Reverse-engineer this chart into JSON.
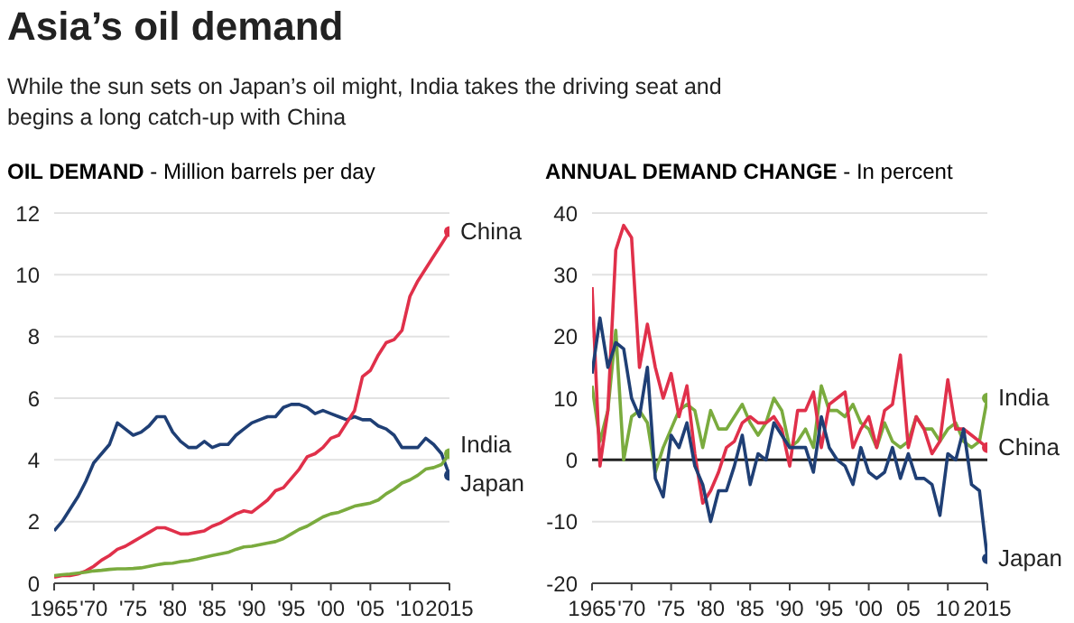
{
  "chart_data": [
    {
      "type": "line",
      "title": "Asia’s oil demand",
      "subtitle": "While the sun sets on Japan’s oil might, India takes the driving seat and begins a long catch-up with China",
      "ylabel": "OIL DEMAND - Million barrels per day",
      "x": [
        1965,
        1966,
        1967,
        1968,
        1969,
        1970,
        1971,
        1972,
        1973,
        1974,
        1975,
        1976,
        1977,
        1978,
        1979,
        1980,
        1981,
        1982,
        1983,
        1984,
        1985,
        1986,
        1987,
        1988,
        1989,
        1990,
        1991,
        1992,
        1993,
        1994,
        1995,
        1996,
        1997,
        1998,
        1999,
        2000,
        2001,
        2002,
        2003,
        2004,
        2005,
        2006,
        2007,
        2008,
        2009,
        2010,
        2011,
        2012,
        2013,
        2014,
        2015
      ],
      "series": [
        {
          "name": "Japan",
          "color": "#1f3f75",
          "values": [
            1.7,
            2.0,
            2.4,
            2.8,
            3.3,
            3.9,
            4.2,
            4.5,
            5.2,
            5.0,
            4.8,
            4.9,
            5.1,
            5.4,
            5.4,
            4.9,
            4.6,
            4.4,
            4.4,
            4.6,
            4.4,
            4.5,
            4.5,
            4.8,
            5.0,
            5.2,
            5.3,
            5.4,
            5.4,
            5.7,
            5.8,
            5.8,
            5.7,
            5.5,
            5.6,
            5.5,
            5.4,
            5.3,
            5.4,
            5.3,
            5.3,
            5.1,
            5.0,
            4.8,
            4.4,
            4.4,
            4.4,
            4.7,
            4.5,
            4.2,
            3.5
          ]
        },
        {
          "name": "China",
          "color": "#e0304a",
          "values": [
            0.2,
            0.25,
            0.25,
            0.3,
            0.4,
            0.55,
            0.75,
            0.9,
            1.1,
            1.2,
            1.35,
            1.5,
            1.65,
            1.8,
            1.8,
            1.7,
            1.6,
            1.6,
            1.65,
            1.7,
            1.85,
            1.95,
            2.1,
            2.25,
            2.35,
            2.3,
            2.5,
            2.7,
            3.0,
            3.1,
            3.4,
            3.7,
            4.1,
            4.2,
            4.4,
            4.7,
            4.8,
            5.2,
            5.6,
            6.7,
            6.9,
            7.4,
            7.8,
            7.9,
            8.2,
            9.3,
            9.8,
            10.2,
            10.6,
            11.0,
            11.4
          ]
        },
        {
          "name": "India",
          "color": "#7aab3e",
          "values": [
            0.25,
            0.28,
            0.3,
            0.33,
            0.36,
            0.4,
            0.42,
            0.45,
            0.47,
            0.47,
            0.48,
            0.5,
            0.55,
            0.6,
            0.64,
            0.65,
            0.7,
            0.73,
            0.78,
            0.84,
            0.9,
            0.95,
            1.0,
            1.1,
            1.18,
            1.2,
            1.25,
            1.3,
            1.35,
            1.45,
            1.6,
            1.75,
            1.85,
            2.0,
            2.15,
            2.25,
            2.3,
            2.4,
            2.5,
            2.55,
            2.6,
            2.7,
            2.9,
            3.05,
            3.25,
            3.35,
            3.5,
            3.7,
            3.75,
            3.85,
            4.2
          ]
        }
      ],
      "xlim": [
        1965,
        2015
      ],
      "xticks": [
        {
          "value": 1965,
          "label": "1965"
        },
        {
          "value": 1970,
          "label": "'70"
        },
        {
          "value": 1975,
          "label": "'75"
        },
        {
          "value": 1980,
          "label": "'80"
        },
        {
          "value": 1985,
          "label": "'85"
        },
        {
          "value": 1990,
          "label": "'90"
        },
        {
          "value": 1995,
          "label": "'95"
        },
        {
          "value": 2000,
          "label": "'00"
        },
        {
          "value": 2005,
          "label": "'05"
        },
        {
          "value": 2010,
          "label": "'10"
        },
        {
          "value": 2015,
          "label": "2015"
        }
      ],
      "ylim": [
        0,
        12
      ],
      "yticks": [
        0,
        2,
        4,
        6,
        8,
        10,
        12
      ],
      "grid": "y",
      "legend": false
    },
    {
      "type": "line",
      "ylabel": "ANNUAL DEMAND CHANGE - In percent",
      "x": [
        1965,
        1966,
        1967,
        1968,
        1969,
        1970,
        1971,
        1972,
        1973,
        1974,
        1975,
        1976,
        1977,
        1978,
        1979,
        1980,
        1981,
        1982,
        1983,
        1984,
        1985,
        1986,
        1987,
        1988,
        1989,
        1990,
        1991,
        1992,
        1993,
        1994,
        1995,
        1996,
        1997,
        1998,
        1999,
        2000,
        2001,
        2002,
        2003,
        2004,
        2005,
        2006,
        2007,
        2008,
        2009,
        2010,
        2011,
        2012,
        2013,
        2014,
        2015
      ],
      "series": [
        {
          "name": "India",
          "color": "#7aab3e",
          "values": [
            12,
            3,
            8,
            21,
            0,
            7,
            8,
            6,
            -2,
            2,
            5,
            8,
            9,
            8,
            2,
            8,
            5,
            5,
            7,
            9,
            6,
            4,
            6,
            10,
            8,
            2,
            3,
            5,
            2,
            12,
            8,
            8,
            7,
            9,
            6,
            5,
            2,
            6,
            3,
            2,
            3,
            7,
            5,
            5,
            3,
            5,
            6,
            3,
            2,
            3,
            10
          ]
        },
        {
          "name": "China",
          "color": "#e0304a",
          "values": [
            28,
            -1,
            8,
            34,
            38,
            36,
            15,
            22,
            15,
            10,
            14,
            7,
            12,
            1,
            -7,
            -5,
            -2,
            2,
            3,
            6,
            7,
            6,
            6,
            7,
            5,
            -1,
            8,
            8,
            11,
            2,
            9,
            10,
            11,
            2,
            5,
            7,
            2,
            8,
            9,
            17,
            2,
            7,
            5,
            1,
            3,
            13,
            5,
            5,
            4,
            3,
            2
          ]
        },
        {
          "name": "Japan",
          "color": "#1f3f75",
          "values": [
            14,
            23,
            15,
            19,
            18,
            10,
            7,
            15,
            -3,
            -6,
            4,
            2,
            6,
            -1,
            -4,
            -10,
            -5,
            -5,
            -1,
            4,
            -4,
            1,
            0,
            6,
            4,
            2,
            2,
            2,
            -2,
            7,
            2,
            0,
            -1,
            -4,
            2,
            -2,
            -3,
            -2,
            2,
            -3,
            1,
            -3,
            -3,
            -4,
            -9,
            1,
            0,
            5,
            -4,
            -5,
            -16
          ]
        }
      ],
      "xlim": [
        1965,
        2015
      ],
      "xticks": [
        {
          "value": 1965,
          "label": "1965"
        },
        {
          "value": 1970,
          "label": "'70"
        },
        {
          "value": 1975,
          "label": "'75"
        },
        {
          "value": 1980,
          "label": "'80"
        },
        {
          "value": 1985,
          "label": "'85"
        },
        {
          "value": 1990,
          "label": "'90"
        },
        {
          "value": 1995,
          "label": "'95"
        },
        {
          "value": 2000,
          "label": "'00"
        },
        {
          "value": 2005,
          "label": "05"
        },
        {
          "value": 2010,
          "label": "10"
        },
        {
          "value": 2015,
          "label": "2015"
        }
      ],
      "ylim": [
        -20,
        40
      ],
      "yticks": [
        -20,
        -10,
        0,
        10,
        20,
        30,
        40
      ],
      "grid": "y",
      "legend": false,
      "ref_lines": [
        {
          "axis": "y",
          "value": 0,
          "color": "#222222"
        }
      ]
    }
  ]
}
